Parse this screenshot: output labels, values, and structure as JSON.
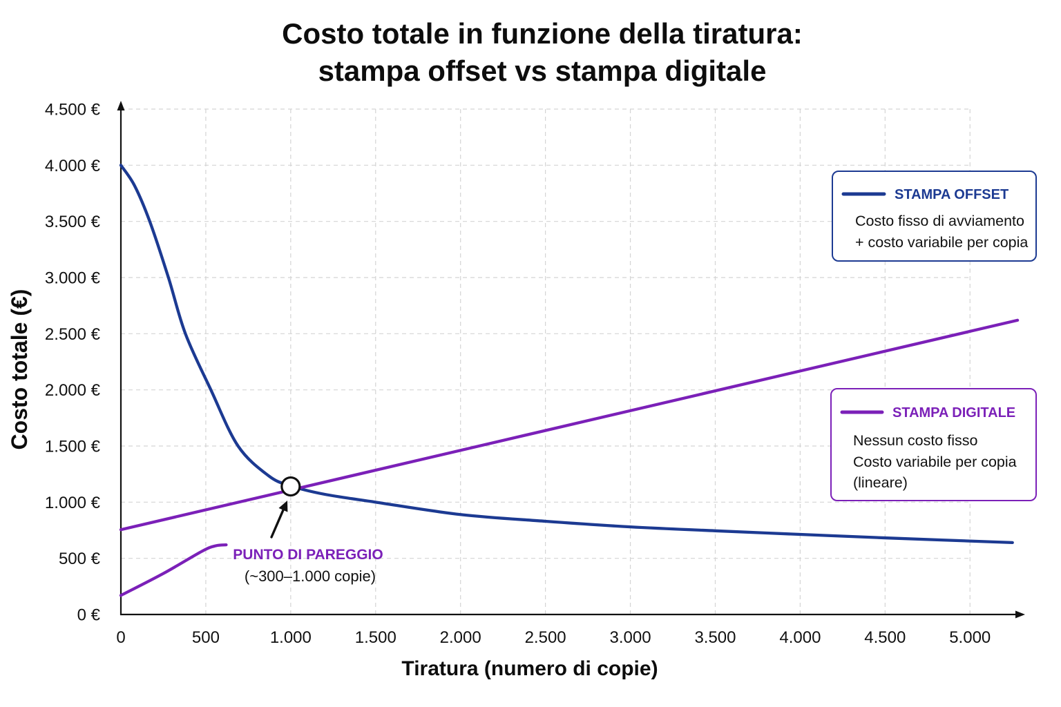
{
  "chart_data": {
    "type": "line",
    "title_lines": [
      "Costo totale in funzione della tiratura:",
      "stampa offset vs stampa digitale"
    ],
    "xlabel": "Tiratura (numero di copie)",
    "ylabel": "Costo totale (€)",
    "xlim": [
      0,
      5300
    ],
    "ylim": [
      0,
      4500
    ],
    "x_ticks": [
      0,
      500,
      1000,
      1500,
      2000,
      2500,
      3000,
      3500,
      4000,
      4500,
      5000
    ],
    "x_tick_labels": [
      "0",
      "500",
      "1.000",
      "1.500",
      "2.000",
      "2.500",
      "3.000",
      "3.500",
      "4.000",
      "4.500",
      "5.000"
    ],
    "y_ticks": [
      0,
      500,
      1000,
      1500,
      2000,
      2500,
      3000,
      3500,
      4000,
      4500
    ],
    "y_tick_labels": [
      "0 €",
      "500 €",
      "1.000 €",
      "1.500 €",
      "2.000 €",
      "2.500 €",
      "3.000 €",
      "3.500 €",
      "4.000 €",
      "4.500 €"
    ],
    "grid": true,
    "legend_position": "right",
    "series": [
      {
        "name": "STAMPA OFFSET",
        "color": "#1c3a92",
        "description": [
          "Costo fisso di avviamento",
          "+ costo variabile per copia"
        ],
        "x": [
          0,
          80,
          170,
          280,
          380,
          530,
          690,
          870,
          1000,
          1200,
          1500,
          2000,
          2500,
          3000,
          3500,
          4000,
          4500,
          5250
        ],
        "y": [
          4000,
          3820,
          3500,
          3000,
          2500,
          2000,
          1500,
          1235,
          1145,
          1070,
          1000,
          890,
          830,
          780,
          745,
          713,
          682,
          640
        ]
      },
      {
        "name": "STAMPA DIGITALE",
        "color": "#7b20b8",
        "description": [
          "Nessun costo fisso",
          "Costo variabile per copia",
          "(lineare)"
        ],
        "x": [
          0,
          5280
        ],
        "y": [
          755,
          2620
        ]
      },
      {
        "color": "#7b20b8",
        "x": [
          0,
          250,
          480,
          560,
          620
        ],
        "y": [
          170,
          365,
          565,
          612,
          620
        ]
      }
    ],
    "annotation": {
      "label": "PUNTO DI PAREGGIO",
      "sublabel": "(~300–1.000 copie)",
      "x": 1000,
      "y": 1140,
      "color": "#7b20b8"
    }
  }
}
